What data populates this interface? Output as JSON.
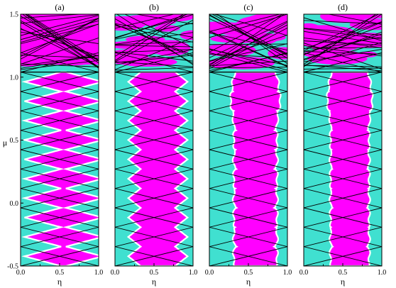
{
  "figure": {
    "y_axis_label": "μ",
    "x_axis_label": "η"
  },
  "colors": {
    "background": "#40e0d0",
    "fill": "#ff00ff",
    "line": "#000000",
    "gap_edge": "#ffffff"
  },
  "chart_data": [
    {
      "type": "heatmap",
      "panel_label": "(a)",
      "xlabel": "η",
      "ylabel": "μ",
      "xlim": [
        0.0,
        1.0
      ],
      "ylim": [
        -0.5,
        1.5
      ],
      "x_ticks": [
        "0.0",
        "0.5",
        "1.0"
      ],
      "y_ticks": [
        "-0.5",
        "0.0",
        "0.5",
        "1.0",
        "1.5"
      ],
      "diamond_rows": 10,
      "lobe_half_width_min": 0.03,
      "lobe_half_width_max": 0.5,
      "waviness": 0.0,
      "upper_band_start": 1.04
    },
    {
      "type": "heatmap",
      "panel_label": "(b)",
      "xlabel": "η",
      "ylabel": "",
      "xlim": [
        0.0,
        1.0
      ],
      "ylim": [
        -0.5,
        1.5
      ],
      "x_ticks": [
        "0.0",
        "0.5",
        "1.0"
      ],
      "y_ticks": [],
      "diamond_rows": 10,
      "lobe_half_width_min": 0.22,
      "lobe_half_width_max": 0.38,
      "waviness": 0.0,
      "upper_band_start": 1.04
    },
    {
      "type": "heatmap",
      "panel_label": "(c)",
      "xlabel": "η",
      "ylabel": "",
      "xlim": [
        0.0,
        1.0
      ],
      "ylim": [
        -0.5,
        1.5
      ],
      "x_ticks": [
        "0.0",
        "0.5",
        "1.0"
      ],
      "y_ticks": [],
      "diamond_rows": 10,
      "lobe_half_width_min": 0.25,
      "lobe_half_width_max": 0.28,
      "waviness": 1.0,
      "upper_band_start": 1.04
    },
    {
      "type": "heatmap",
      "panel_label": "(d)",
      "xlabel": "η",
      "ylabel": "",
      "xlim": [
        0.0,
        1.0
      ],
      "ylim": [
        -0.5,
        1.5
      ],
      "x_ticks": [
        "0.0",
        "0.5",
        "1.0"
      ],
      "y_ticks": [],
      "diamond_rows": 10,
      "lobe_half_width_min": 0.23,
      "lobe_half_width_max": 0.25,
      "waviness": 1.0,
      "upper_band_start": 1.04
    }
  ]
}
